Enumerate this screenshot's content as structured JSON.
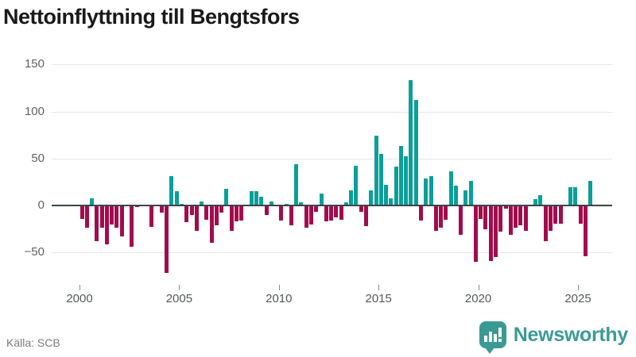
{
  "title": "Nettoinflyttning till Bengtsfors",
  "source": "Källa: SCB",
  "brand": {
    "name": "Newsworthy",
    "badge_icon": "bar-chart-speech-bubble"
  },
  "colors": {
    "positive_bar": "#0a9f99",
    "negative_bar": "#a10c4d",
    "zero_line": "#3d444b",
    "gridline": "#e6e6e6",
    "brand_teal": "#399a94"
  },
  "chart_data": {
    "type": "bar",
    "title": "Nettoinflyttning till Bengtsfors",
    "xlabel": "",
    "ylabel": "",
    "frequency": "quarterly",
    "start_period": "2000-Q1",
    "end_period": "2025-Q3",
    "x_tick_labels": [
      "2000",
      "2005",
      "2010",
      "2015",
      "2020",
      "2025"
    ],
    "y_ticks": [
      150,
      100,
      50,
      0,
      -50
    ],
    "ylim": [
      -80,
      160
    ],
    "grid": "horizontal",
    "legend": "none",
    "series": [
      {
        "year": 2000,
        "values": [
          -14,
          -24,
          8,
          -38
        ]
      },
      {
        "year": 2001,
        "values": [
          -24,
          -41,
          -20,
          -24
        ]
      },
      {
        "year": 2002,
        "values": [
          -33,
          0,
          -44,
          -2
        ]
      },
      {
        "year": 2003,
        "values": [
          0,
          0,
          -23,
          0
        ]
      },
      {
        "year": 2004,
        "values": [
          -8,
          -72,
          31,
          15
        ]
      },
      {
        "year": 2005,
        "values": [
          2,
          -18,
          -10,
          -27
        ]
      },
      {
        "year": 2006,
        "values": [
          4,
          -15,
          -40,
          -21
        ]
      },
      {
        "year": 2007,
        "values": [
          -8,
          18,
          -27,
          -17
        ]
      },
      {
        "year": 2008,
        "values": [
          -16,
          0,
          15,
          15
        ]
      },
      {
        "year": 2009,
        "values": [
          9,
          -10,
          4,
          0
        ]
      },
      {
        "year": 2010,
        "values": [
          -16,
          2,
          -21,
          44
        ]
      },
      {
        "year": 2011,
        "values": [
          3,
          -24,
          -20,
          -7
        ]
      },
      {
        "year": 2012,
        "values": [
          13,
          -17,
          -16,
          -13
        ]
      },
      {
        "year": 2013,
        "values": [
          -15,
          3,
          16,
          42
        ]
      },
      {
        "year": 2014,
        "values": [
          -7,
          -22,
          16,
          74
        ]
      },
      {
        "year": 2015,
        "values": [
          55,
          22,
          8,
          41
        ]
      },
      {
        "year": 2016,
        "values": [
          63,
          52,
          133,
          112
        ]
      },
      {
        "year": 2017,
        "values": [
          -16,
          29,
          31,
          -27
        ]
      },
      {
        "year": 2018,
        "values": [
          -24,
          -15,
          36,
          21
        ]
      },
      {
        "year": 2019,
        "values": [
          -31,
          16,
          26,
          -60
        ]
      },
      {
        "year": 2020,
        "values": [
          -14,
          -25,
          -59,
          -55
        ]
      },
      {
        "year": 2021,
        "values": [
          -28,
          -3,
          -31,
          -24
        ]
      },
      {
        "year": 2022,
        "values": [
          -21,
          -27,
          0,
          7
        ]
      },
      {
        "year": 2023,
        "values": [
          11,
          -38,
          -27,
          -19
        ]
      },
      {
        "year": 2024,
        "values": [
          -19,
          0,
          19,
          19
        ]
      },
      {
        "year": 2025,
        "values": [
          -19,
          -54,
          26
        ]
      }
    ]
  }
}
